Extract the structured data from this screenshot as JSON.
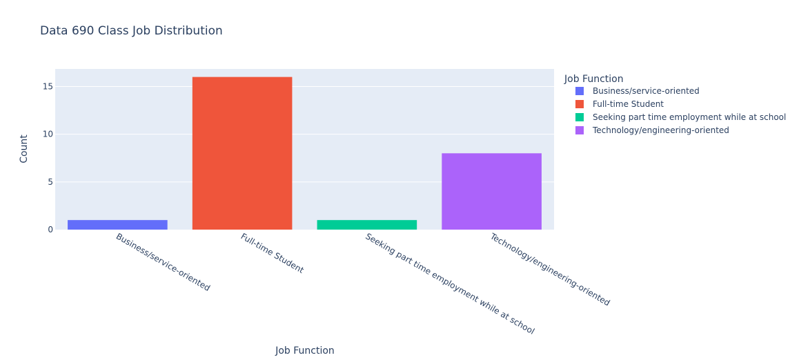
{
  "chart_data": {
    "type": "bar",
    "title": "Data 690 Class Job Distribution",
    "xlabel": "Job Function",
    "ylabel": "Count",
    "categories": [
      "Business/service-oriented",
      "Full-time Student",
      "Seeking part time employment while at school",
      "Technology/engineering-oriented"
    ],
    "values": [
      1,
      16,
      1,
      8
    ],
    "colors": [
      "#636efa",
      "#ef553b",
      "#00cc96",
      "#ab63fa"
    ],
    "ylim": [
      0,
      16.84
    ],
    "yticks": [
      0,
      5,
      10,
      15
    ],
    "grid": true,
    "legend": {
      "title": "Job Function",
      "placement": "right",
      "entries": [
        "Business/service-oriented",
        "Full-time Student",
        "Seeking part time employment while at school",
        "Technology/engineering-oriented"
      ]
    },
    "plot_background": "#e5ecf6"
  }
}
